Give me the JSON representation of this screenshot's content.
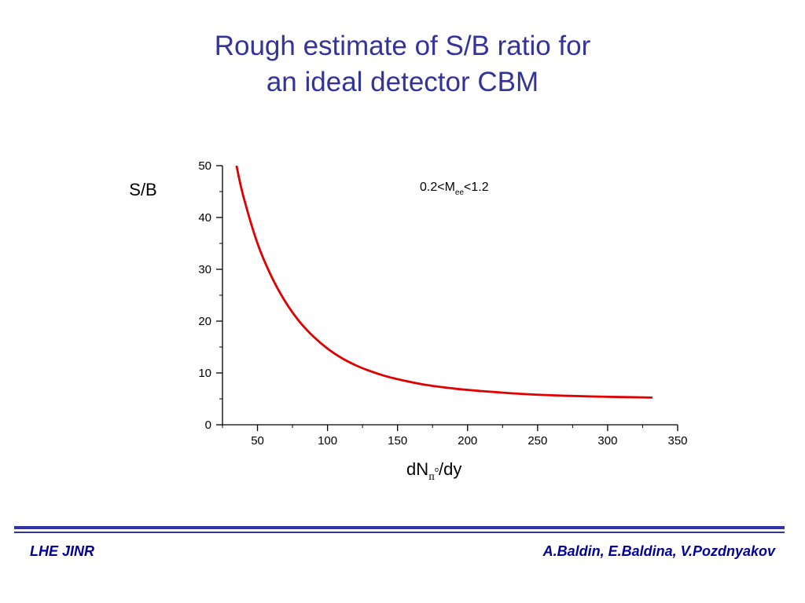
{
  "slide": {
    "title_line1": "Rough estimate of S/B ratio for",
    "title_line2": "an ideal detector CBM",
    "footer_left": "LHE JINR",
    "footer_right": "A.Baldin, E.Baldina, V.Pozdnyakov",
    "title_color": "#333399",
    "footer_color": "#000099"
  },
  "chart_data": {
    "type": "line",
    "title": "",
    "ylabel": "S/B",
    "xlabel_main": "dN",
    "xlabel_sub": "π",
    "xlabel_sup": "o",
    "xlabel_tail": "/dy",
    "annotation_main": "0.2<M",
    "annotation_sub": "ee",
    "annotation_tail": "<1.2",
    "xlim": [
      25,
      350
    ],
    "ylim": [
      0,
      50
    ],
    "x_ticks": [
      50,
      100,
      150,
      200,
      250,
      300,
      350
    ],
    "y_ticks": [
      0,
      10,
      20,
      30,
      40,
      50
    ],
    "grid": false,
    "series_color": "#e00000",
    "series": [
      {
        "x": [
          35,
          40,
          50,
          60,
          70,
          80,
          90,
          100,
          110,
          120,
          130,
          140,
          150,
          170,
          190,
          210,
          230,
          250,
          270,
          290,
          310,
          332
        ],
        "y": [
          50.0,
          44.0,
          35.0,
          28.6,
          23.7,
          19.9,
          17.0,
          14.7,
          12.9,
          11.5,
          10.4,
          9.5,
          8.8,
          7.7,
          7.0,
          6.5,
          6.1,
          5.8,
          5.6,
          5.45,
          5.35,
          5.25
        ]
      }
    ]
  }
}
